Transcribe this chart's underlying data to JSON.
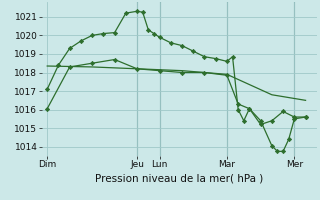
{
  "bg_color": "#cce8e8",
  "grid_color": "#9fc8c8",
  "line_color": "#2d6e2d",
  "marker_color": "#2d6e2d",
  "xlabel": "Pression niveau de la mer( hPa )",
  "ylim": [
    1013.5,
    1021.8
  ],
  "yticks": [
    1014,
    1015,
    1016,
    1017,
    1018,
    1019,
    1020,
    1021
  ],
  "x_day_labels": [
    "Dim",
    "Jeu",
    "Lun",
    "Mar",
    "Mer"
  ],
  "x_day_positions": [
    0,
    32,
    40,
    64,
    88
  ],
  "xlim": [
    -2,
    96
  ],
  "vline_positions": [
    32,
    40,
    64,
    88
  ],
  "series1_x": [
    0,
    4,
    8,
    12,
    16,
    20,
    24,
    28,
    32,
    34,
    36,
    38,
    40,
    44,
    48,
    52,
    56,
    60,
    64,
    66,
    68,
    70,
    72,
    76,
    80,
    82,
    84,
    86,
    88,
    92
  ],
  "series1_y": [
    1017.1,
    1018.4,
    1019.3,
    1019.7,
    1020.0,
    1020.1,
    1020.15,
    1021.2,
    1021.3,
    1021.25,
    1020.3,
    1020.1,
    1019.9,
    1019.6,
    1019.45,
    1019.15,
    1018.85,
    1018.75,
    1018.6,
    1018.85,
    1016.0,
    1015.4,
    1016.05,
    1015.4,
    1014.05,
    1013.75,
    1013.75,
    1014.4,
    1015.5,
    1015.6
  ],
  "series2_x": [
    0,
    8,
    16,
    24,
    32,
    40,
    48,
    56,
    64,
    68,
    72,
    76,
    80,
    84,
    88,
    92
  ],
  "series2_y": [
    1016.05,
    1018.3,
    1018.5,
    1018.7,
    1018.2,
    1018.1,
    1018.0,
    1018.0,
    1017.85,
    1016.3,
    1016.05,
    1015.2,
    1015.4,
    1015.9,
    1015.6,
    1015.6
  ],
  "series3_x": [
    0,
    16,
    32,
    48,
    64,
    80,
    92
  ],
  "series3_y": [
    1018.35,
    1018.3,
    1018.2,
    1018.1,
    1017.9,
    1016.8,
    1016.5
  ]
}
